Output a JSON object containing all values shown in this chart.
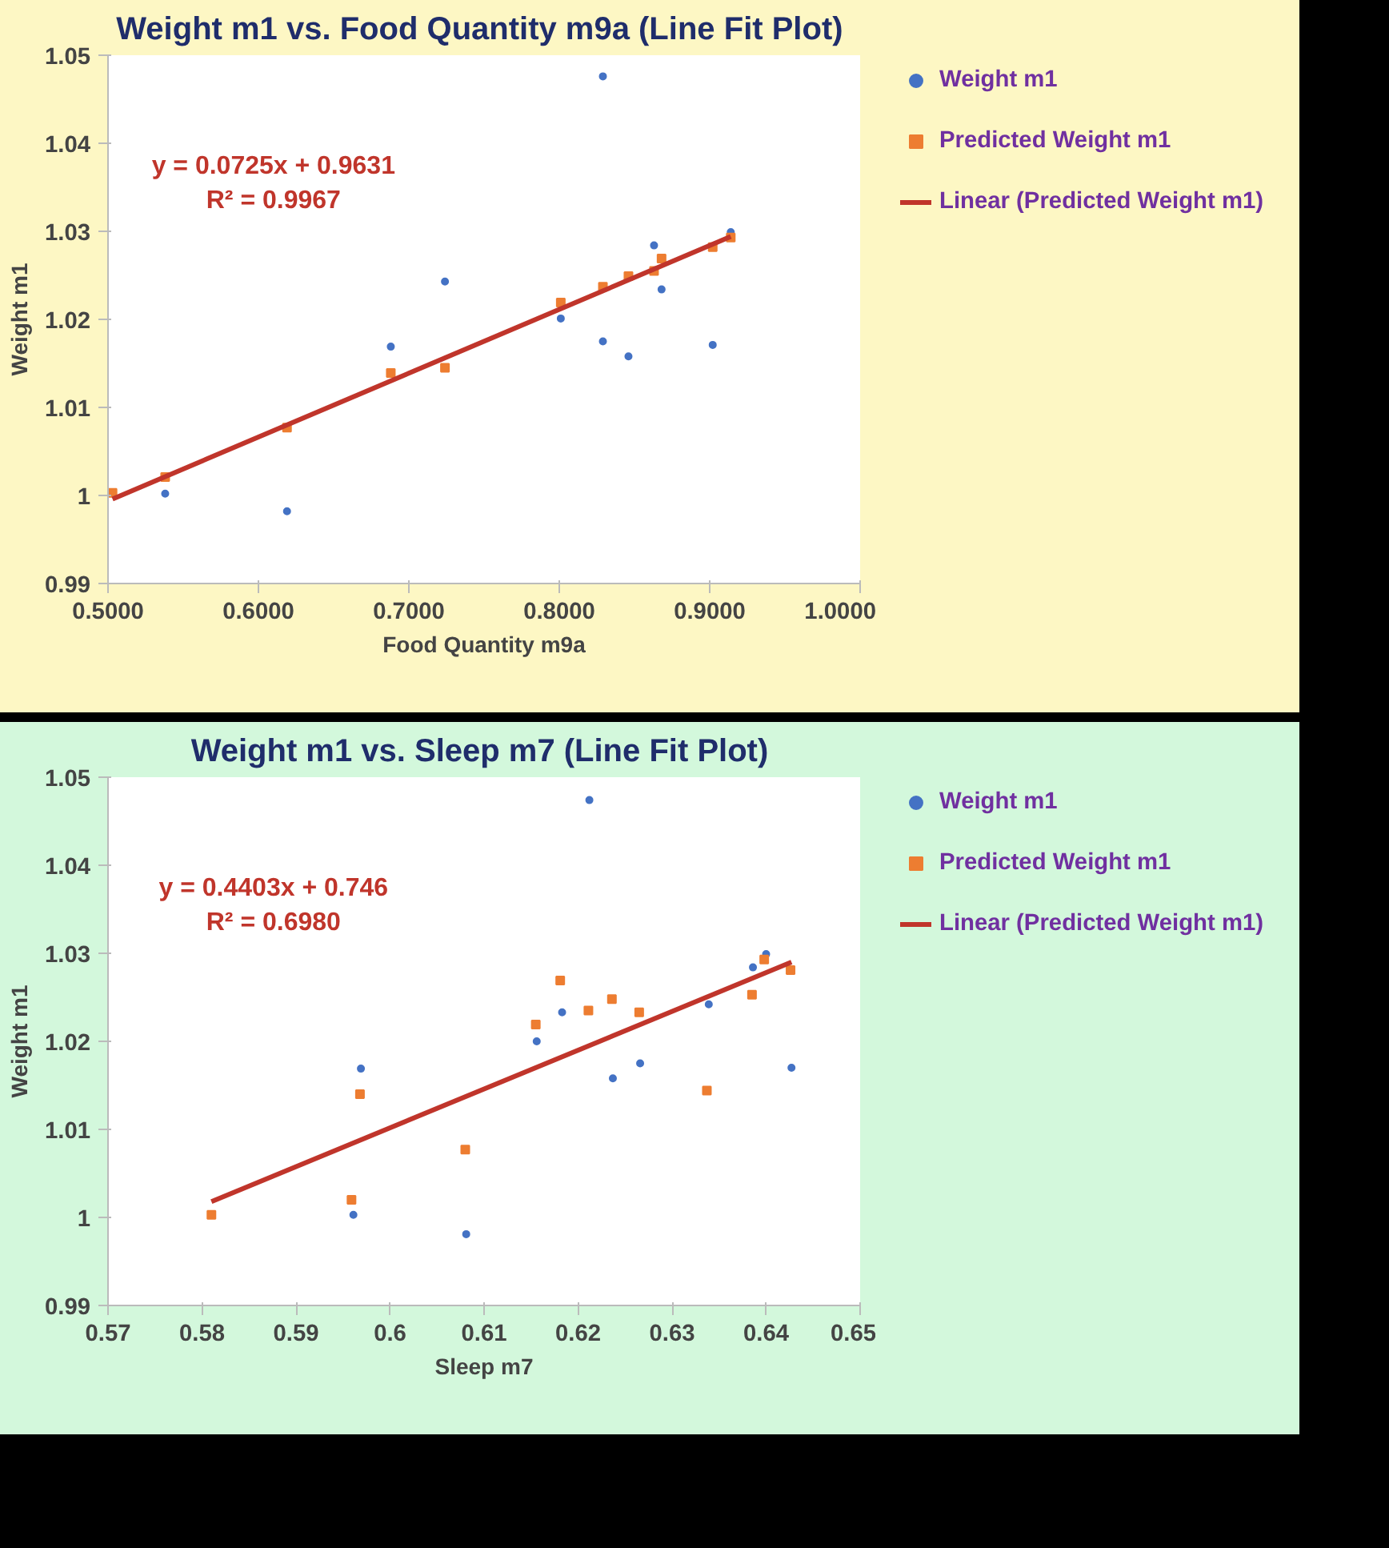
{
  "chart_data": [
    {
      "type": "scatter",
      "title": "Weight m1 vs. Food Quantity m9a  (Line Fit Plot)",
      "xlabel": "Food Quantity m9a",
      "ylabel": "Weight m1",
      "xlim": [
        0.5,
        1.0
      ],
      "xticks": [
        {
          "value": 0.5,
          "label": "0.5000"
        },
        {
          "value": 0.6,
          "label": "0.6000"
        },
        {
          "value": 0.7,
          "label": "0.7000"
        },
        {
          "value": 0.8,
          "label": "0.8000"
        },
        {
          "value": 0.9,
          "label": "0.9000"
        },
        {
          "value": 1.0,
          "label": "1.0000"
        }
      ],
      "ylim": [
        0.99,
        1.05
      ],
      "yticks": [
        0.99,
        1,
        1.01,
        1.02,
        1.03,
        1.04,
        1.05
      ],
      "grid": false,
      "legend": "right",
      "annotations": [
        "y = 0.0725x + 0.9631",
        "R² = 0.9967"
      ],
      "series": [
        {
          "name": "Weight m1",
          "type": "scatter",
          "marker": "circle",
          "color": "#4472c4",
          "x": [
            0.538,
            0.619,
            0.688,
            0.724,
            0.801,
            0.829,
            0.829,
            0.846,
            0.863,
            0.868,
            0.902,
            0.914
          ],
          "values": [
            1.0002,
            0.9982,
            1.0169,
            1.0243,
            1.0201,
            1.0476,
            1.0175,
            1.0158,
            1.0284,
            1.0234,
            1.0171,
            1.0299
          ]
        },
        {
          "name": "Predicted Weight m1",
          "type": "scatter",
          "marker": "square",
          "color": "#ed7d31",
          "x": [
            0.503,
            0.538,
            0.619,
            0.688,
            0.724,
            0.801,
            0.829,
            0.846,
            0.863,
            0.868,
            0.902,
            0.914
          ],
          "values": [
            1.0003,
            1.0021,
            1.0077,
            1.0139,
            1.0145,
            1.0219,
            1.0237,
            1.0249,
            1.0255,
            1.0269,
            1.0282,
            1.0293
          ]
        },
        {
          "name": "Linear (Predicted Weight m1)",
          "type": "line",
          "marker": "none",
          "color": "#c0352b",
          "x": [
            0.503,
            0.914
          ],
          "values": [
            0.9996,
            1.0294
          ]
        }
      ]
    },
    {
      "type": "scatter",
      "title": "Weight m1 vs. Sleep m7  (Line Fit Plot)",
      "xlabel": "Sleep m7",
      "ylabel": "Weight m1",
      "xlim": [
        0.57,
        0.65
      ],
      "xticks": [
        0.57,
        0.58,
        0.59,
        0.6,
        0.61,
        0.62,
        0.63,
        0.64,
        0.65
      ],
      "ylim": [
        0.99,
        1.05
      ],
      "yticks": [
        0.99,
        1,
        1.01,
        1.02,
        1.03,
        1.04,
        1.05
      ],
      "grid": false,
      "legend": "right",
      "annotations": [
        "y = 0.4403x + 0.746",
        "R² = 0.6980"
      ],
      "series": [
        {
          "name": "Weight m1",
          "type": "scatter",
          "marker": "circle",
          "color": "#4472c4",
          "x": [
            0.5961,
            0.5969,
            0.6081,
            0.6156,
            0.6183,
            0.6212,
            0.6237,
            0.6266,
            0.6339,
            0.6386,
            0.64,
            0.6427
          ],
          "values": [
            1.0003,
            1.0169,
            0.9981,
            1.02,
            1.0233,
            1.0474,
            1.0158,
            1.0175,
            1.0242,
            1.0284,
            1.0299,
            1.017
          ]
        },
        {
          "name": "Predicted Weight m1",
          "type": "scatter",
          "marker": "square",
          "color": "#ed7d31",
          "x": [
            0.581,
            0.5959,
            0.5968,
            0.608,
            0.6155,
            0.6181,
            0.6211,
            0.6236,
            0.6265,
            0.6337,
            0.6385,
            0.6398,
            0.6426
          ],
          "values": [
            1.0003,
            1.002,
            1.014,
            1.0077,
            1.0219,
            1.0269,
            1.0235,
            1.0248,
            1.0233,
            1.0144,
            1.0253,
            1.0293,
            1.0281
          ]
        },
        {
          "name": "Linear (Predicted Weight m1)",
          "type": "line",
          "marker": "none",
          "color": "#c0352b",
          "x": [
            0.581,
            0.6427
          ],
          "values": [
            1.0018,
            1.029
          ]
        }
      ]
    }
  ]
}
